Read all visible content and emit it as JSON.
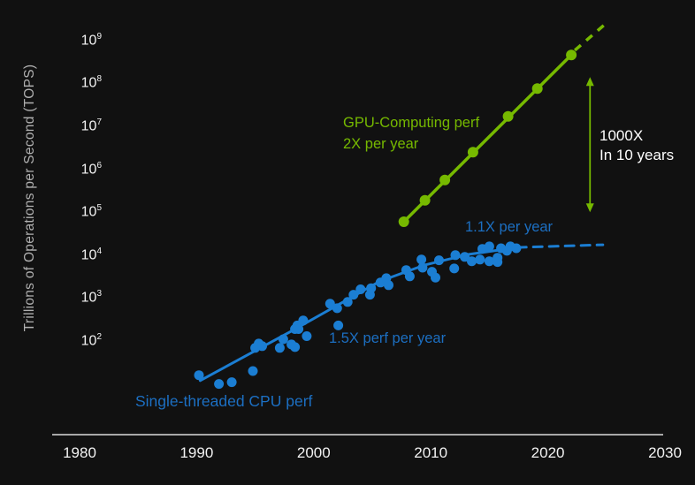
{
  "colors": {
    "background": "#111111",
    "gpu_green": "#76b900",
    "cpu_blue": "#1b7ed3",
    "text_blue": "#1c6fc2",
    "axis_gray": "#a8a8a8",
    "tick_text": "#f2f2f2",
    "ylabel_gray": "#b0b0b0",
    "callout_white": "#ffffff"
  },
  "annotations": {
    "gpu_label_line1": "GPU-Computing perf",
    "gpu_label_line2": "2X per year",
    "cpu_flat_label": "1.1X per year",
    "cpu_growth_label": "1.5X perf per year",
    "cpu_series_label": "Single-threaded CPU perf",
    "callout_line1": "1000X",
    "callout_line2": "In 10 years"
  },
  "chart_data": {
    "type": "scatter",
    "title": "",
    "ylabel": "Trillions of Operations per Second (TOPS)",
    "xlabel": "",
    "grid": false,
    "x_axis": {
      "ticks": [
        1980,
        1990,
        2000,
        2010,
        2020,
        2030
      ]
    },
    "y_axis": {
      "scale": "log",
      "tick_exponents": [
        2,
        3,
        4,
        5,
        6,
        7,
        8,
        9
      ],
      "range": [
        100,
        1000000000
      ]
    },
    "series": [
      {
        "name": "Single-threaded CPU perf",
        "growth_label_early": "1.5X perf per year",
        "growth_label_late": "1.1X per year",
        "color_key": "cpu_blue",
        "points": [
          [
            1990.2,
            16
          ],
          [
            1991.9,
            10
          ],
          [
            1993.0,
            11
          ],
          [
            1994.8,
            20
          ],
          [
            1995.0,
            69
          ],
          [
            1995.3,
            87
          ],
          [
            1995.6,
            76
          ],
          [
            1997.1,
            69
          ],
          [
            1997.4,
            110
          ],
          [
            1998.1,
            83
          ],
          [
            1998.4,
            72
          ],
          [
            1998.4,
            190
          ],
          [
            1998.6,
            230
          ],
          [
            1998.7,
            190
          ],
          [
            1999.1,
            300
          ],
          [
            1999.4,
            130
          ],
          [
            2001.4,
            740
          ],
          [
            2002.0,
            580
          ],
          [
            2002.1,
            230
          ],
          [
            2002.9,
            810
          ],
          [
            2003.4,
            1200
          ],
          [
            2004.0,
            1600
          ],
          [
            2004.8,
            1200
          ],
          [
            2004.9,
            1700
          ],
          [
            2005.7,
            2300
          ],
          [
            2006.2,
            2900
          ],
          [
            2006.4,
            2000
          ],
          [
            2007.9,
            4500
          ],
          [
            2008.2,
            3200
          ],
          [
            2009.2,
            7900
          ],
          [
            2009.3,
            5100
          ],
          [
            2010.1,
            4100
          ],
          [
            2010.4,
            3000
          ],
          [
            2010.7,
            7600
          ],
          [
            2012.0,
            4900
          ],
          [
            2012.1,
            10000
          ],
          [
            2012.9,
            9100
          ],
          [
            2013.5,
            7200
          ],
          [
            2014.2,
            7900
          ],
          [
            2014.4,
            14000
          ],
          [
            2015.0,
            16000
          ],
          [
            2015.0,
            7200
          ],
          [
            2015.7,
            8700
          ],
          [
            2015.7,
            6900
          ],
          [
            2016.0,
            14500
          ],
          [
            2016.5,
            12600
          ],
          [
            2016.8,
            16000
          ],
          [
            2017.3,
            14500
          ]
        ],
        "trend_solid": [
          [
            1990.3,
            12
          ],
          [
            1998.1,
            170
          ],
          [
            2005.7,
            2500
          ],
          [
            2009.5,
            5900
          ],
          [
            2013.2,
            10400
          ],
          [
            2017.4,
            15100
          ]
        ],
        "trend_dashed": [
          [
            2017.4,
            15100
          ],
          [
            2024.7,
            17400
          ]
        ]
      },
      {
        "name": "GPU-Computing perf",
        "growth_label": "2X per year",
        "color_key": "gpu_green",
        "points": [
          [
            2007.7,
            60000
          ],
          [
            2009.5,
            190000
          ],
          [
            2011.2,
            560000
          ],
          [
            2013.6,
            2500000
          ],
          [
            2016.6,
            17000000
          ],
          [
            2019.1,
            76000000
          ],
          [
            2022.0,
            460000000
          ]
        ],
        "trend_solid": [
          [
            2007.7,
            60000
          ],
          [
            2022.0,
            460000000
          ]
        ],
        "trend_dashed": [
          [
            2022.3,
            590000000
          ],
          [
            2024.9,
            2400000000
          ]
        ]
      }
    ],
    "arrow_annotation": {
      "label": "1000X In 10 years",
      "year": 2023.6,
      "from_tops": 100000,
      "to_tops": 140000000
    }
  }
}
